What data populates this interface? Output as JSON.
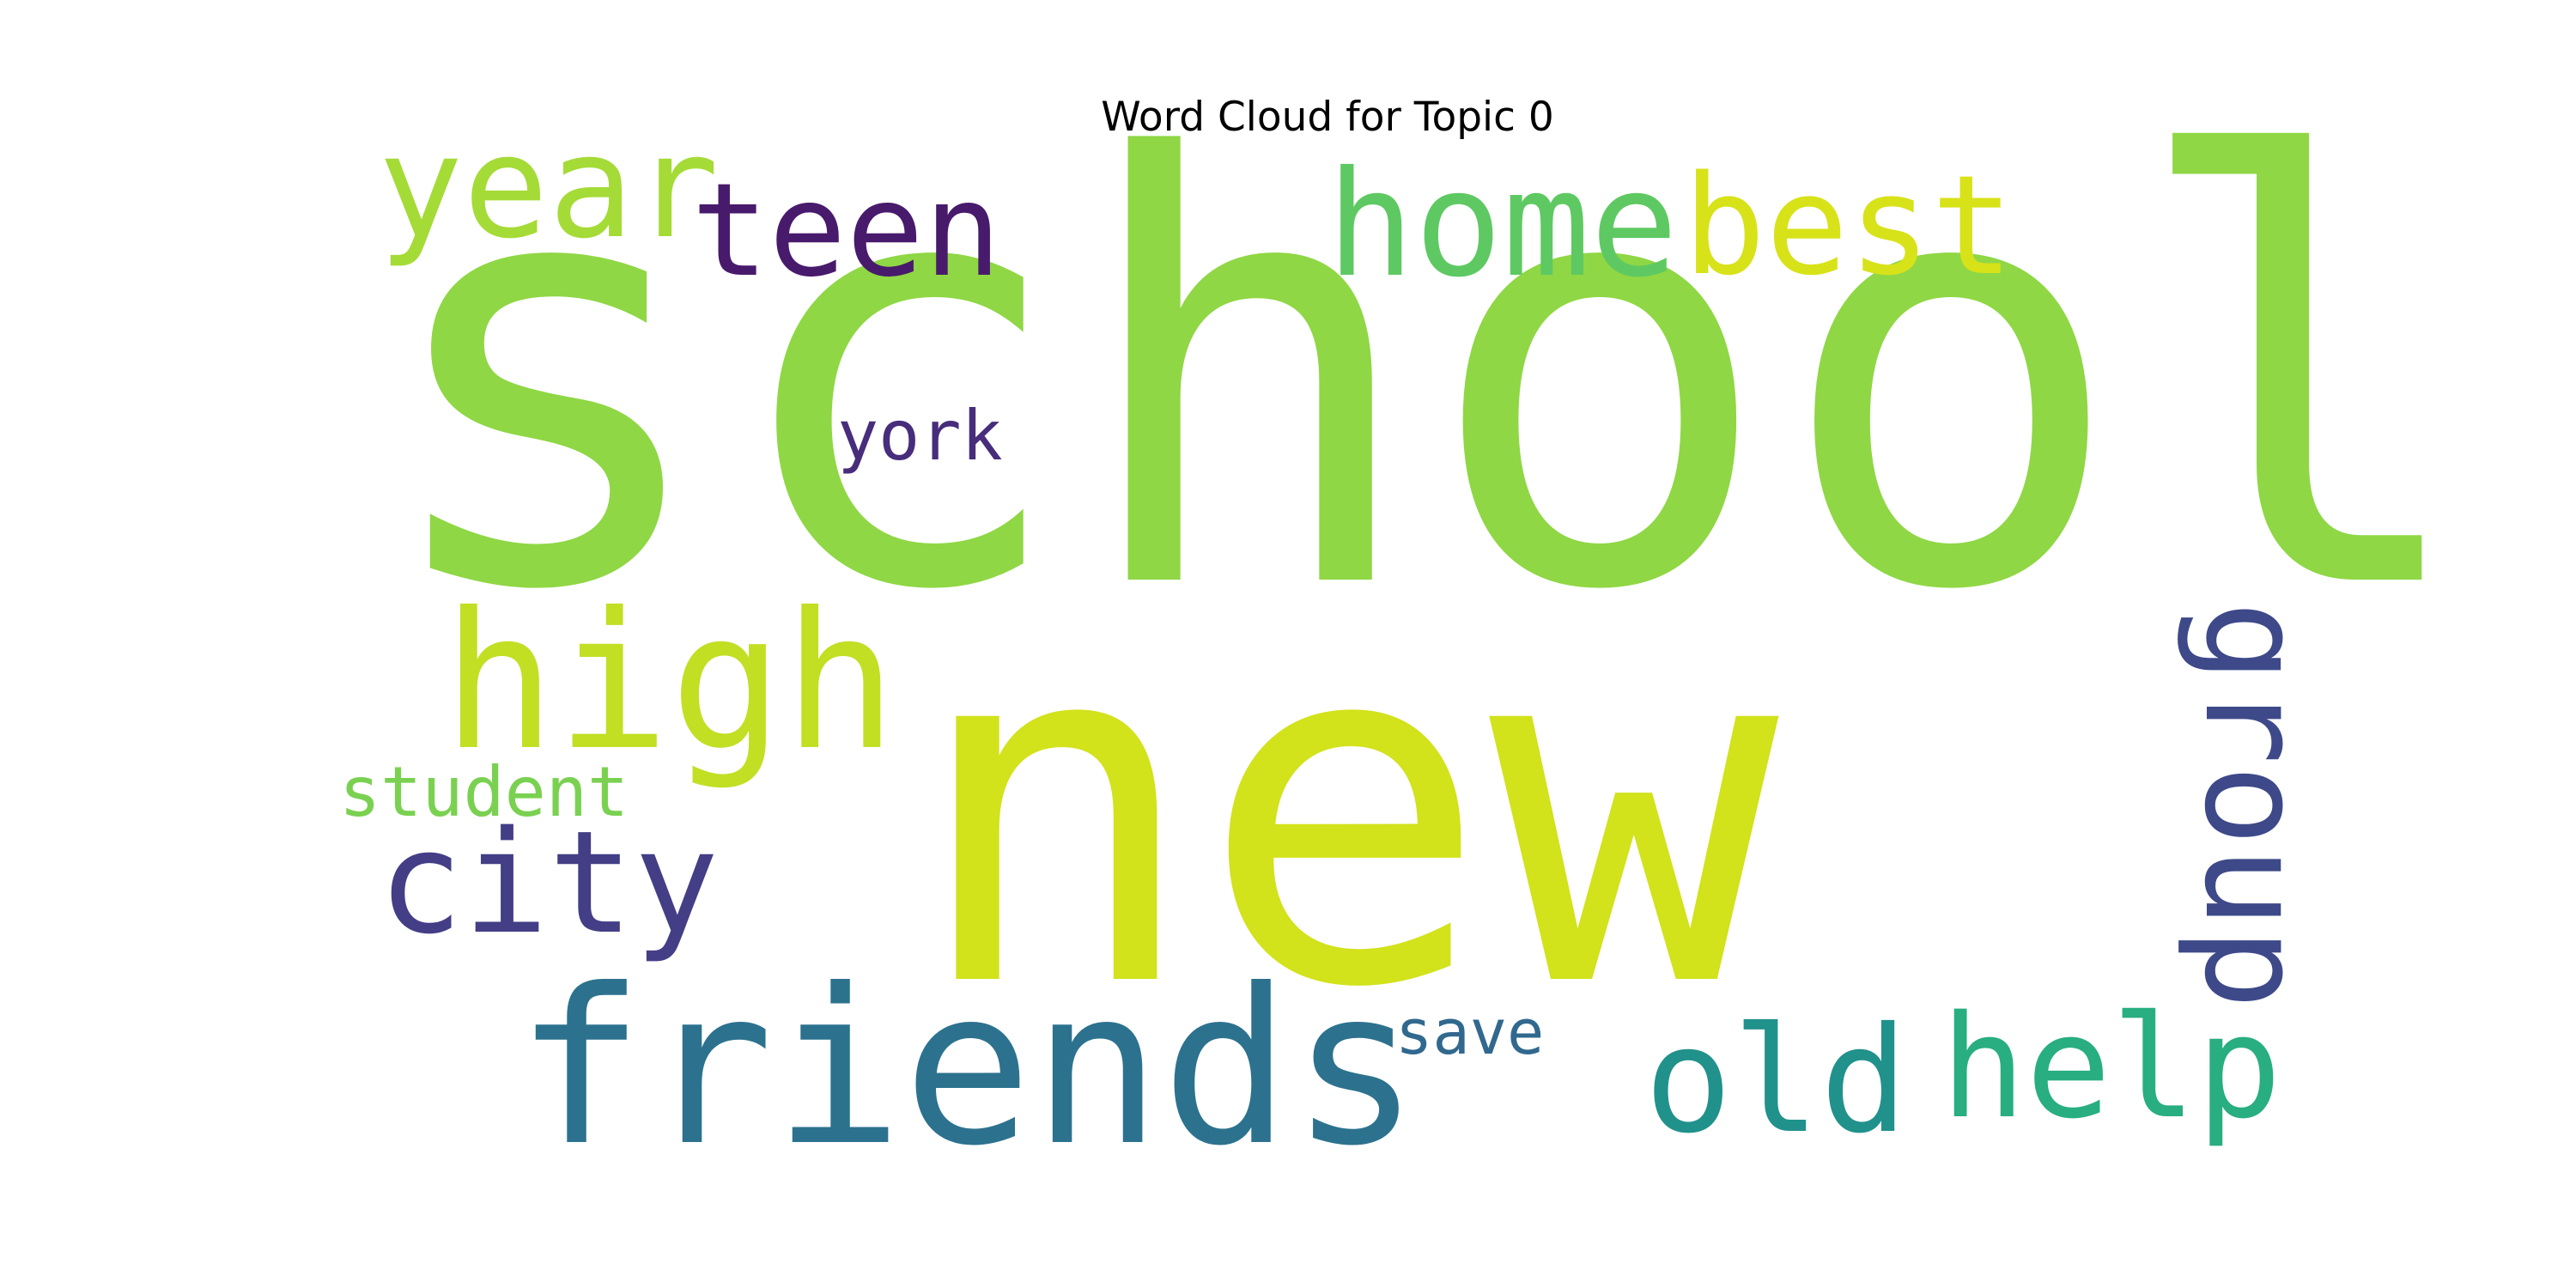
{
  "title": "Word Cloud for Topic 0",
  "words": [
    {
      "text": "school",
      "color": "#8fd744"
    },
    {
      "text": "new",
      "color": "#d2e21b"
    },
    {
      "text": "friends",
      "color": "#2c728e"
    },
    {
      "text": "high",
      "color": "#c2df23"
    },
    {
      "text": "city",
      "color": "#433e85"
    },
    {
      "text": "year",
      "color": "#a5db36"
    },
    {
      "text": "teen",
      "color": "#481a6c"
    },
    {
      "text": "home",
      "color": "#5ec962"
    },
    {
      "text": "best",
      "color": "#d8e219"
    },
    {
      "text": "york",
      "color": "#472d7b"
    },
    {
      "text": "group",
      "color": "#3e4989"
    },
    {
      "text": "old",
      "color": "#21918c"
    },
    {
      "text": "help",
      "color": "#28ae80"
    },
    {
      "text": "student",
      "color": "#7ad151"
    },
    {
      "text": "save",
      "color": "#31688e"
    }
  ]
}
